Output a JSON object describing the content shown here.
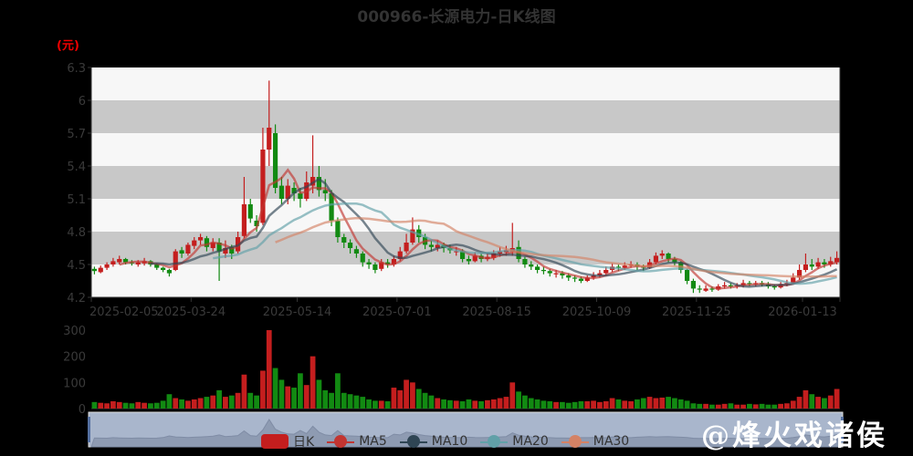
{
  "chart_data": {
    "type": "candlestick",
    "title": "000966-长源电力-日K线图",
    "y_unit_label": "(元)",
    "ylim": [
      4.2,
      6.3
    ],
    "y_ticks": [
      "4.2",
      "4.5",
      "4.8",
      "5.1",
      "5.4",
      "5.7",
      "6",
      "6.3"
    ],
    "x_ticks": [
      {
        "label": "2025-02-05",
        "index": 0
      },
      {
        "label": "2025-03-24",
        "index": 16
      },
      {
        "label": "2025-05-14",
        "index": 33
      },
      {
        "label": "2025-07-01",
        "index": 49
      },
      {
        "label": "2025-08-15",
        "index": 65
      },
      {
        "label": "2025-10-09",
        "index": 81
      },
      {
        "label": "2025-11-25",
        "index": 97
      },
      {
        "label": "2026-01-13",
        "index": 114
      }
    ],
    "ohlc_fields": [
      "open",
      "close",
      "low",
      "high"
    ],
    "ohlc": [
      [
        4.46,
        4.44,
        4.41,
        4.48
      ],
      [
        4.43,
        4.47,
        4.42,
        4.49
      ],
      [
        4.47,
        4.5,
        4.45,
        4.52
      ],
      [
        4.5,
        4.53,
        4.48,
        4.56
      ],
      [
        4.52,
        4.55,
        4.5,
        4.58
      ],
      [
        4.55,
        4.52,
        4.5,
        4.56
      ],
      [
        4.52,
        4.51,
        4.49,
        4.54
      ],
      [
        4.5,
        4.52,
        4.48,
        4.54
      ],
      [
        4.51,
        4.53,
        4.49,
        4.56
      ],
      [
        4.53,
        4.5,
        4.48,
        4.54
      ],
      [
        4.5,
        4.47,
        4.45,
        4.51
      ],
      [
        4.47,
        4.45,
        4.43,
        4.48
      ],
      [
        4.45,
        4.42,
        4.39,
        4.46
      ],
      [
        4.45,
        4.62,
        4.44,
        4.64
      ],
      [
        4.63,
        4.6,
        4.56,
        4.66
      ],
      [
        4.6,
        4.68,
        4.58,
        4.7
      ],
      [
        4.67,
        4.72,
        4.64,
        4.75
      ],
      [
        4.72,
        4.75,
        4.68,
        4.78
      ],
      [
        4.74,
        4.66,
        4.62,
        4.76
      ],
      [
        4.65,
        4.7,
        4.62,
        4.74
      ],
      [
        4.7,
        4.62,
        4.35,
        4.74
      ],
      [
        4.6,
        4.65,
        4.56,
        4.72
      ],
      [
        4.66,
        4.6,
        4.55,
        4.68
      ],
      [
        4.62,
        4.75,
        4.6,
        4.8
      ],
      [
        4.76,
        5.05,
        4.74,
        5.3
      ],
      [
        5.05,
        4.92,
        4.88,
        5.1
      ],
      [
        4.9,
        4.85,
        4.8,
        4.95
      ],
      [
        4.88,
        5.55,
        4.86,
        5.75
      ],
      [
        5.55,
        5.75,
        5.4,
        6.18
      ],
      [
        5.7,
        5.2,
        5.15,
        5.78
      ],
      [
        5.22,
        5.1,
        5.05,
        5.3
      ],
      [
        5.1,
        5.22,
        5.05,
        5.28
      ],
      [
        5.2,
        5.15,
        5.08,
        5.25
      ],
      [
        5.15,
        5.1,
        5.02,
        5.2
      ],
      [
        5.1,
        5.25,
        5.08,
        5.35
      ],
      [
        5.22,
        5.3,
        5.15,
        5.68
      ],
      [
        5.3,
        5.18,
        5.12,
        5.4
      ],
      [
        5.18,
        5.15,
        5.08,
        5.28
      ],
      [
        5.15,
        4.9,
        4.85,
        5.18
      ],
      [
        4.9,
        4.75,
        4.7,
        4.93
      ],
      [
        4.75,
        4.7,
        4.65,
        4.78
      ],
      [
        4.7,
        4.65,
        4.6,
        4.73
      ],
      [
        4.64,
        4.6,
        4.56,
        4.67
      ],
      [
        4.6,
        4.52,
        4.48,
        4.62
      ],
      [
        4.52,
        4.5,
        4.46,
        4.55
      ],
      [
        4.5,
        4.45,
        4.42,
        4.52
      ],
      [
        4.46,
        4.52,
        4.44,
        4.55
      ],
      [
        4.52,
        4.5,
        4.47,
        4.55
      ],
      [
        4.5,
        4.55,
        4.48,
        4.58
      ],
      [
        4.55,
        4.62,
        4.53,
        4.66
      ],
      [
        4.62,
        4.7,
        4.6,
        4.78
      ],
      [
        4.7,
        4.82,
        4.68,
        4.93
      ],
      [
        4.82,
        4.75,
        4.7,
        4.86
      ],
      [
        4.75,
        4.68,
        4.64,
        4.78
      ],
      [
        4.68,
        4.66,
        4.62,
        4.72
      ],
      [
        4.65,
        4.68,
        4.62,
        4.72
      ],
      [
        4.68,
        4.65,
        4.61,
        4.7
      ],
      [
        4.65,
        4.63,
        4.6,
        4.68
      ],
      [
        4.62,
        4.62,
        4.58,
        4.66
      ],
      [
        4.62,
        4.55,
        4.52,
        4.64
      ],
      [
        4.55,
        4.53,
        4.5,
        4.58
      ],
      [
        4.53,
        4.58,
        4.52,
        4.61
      ],
      [
        4.58,
        4.55,
        4.52,
        4.6
      ],
      [
        4.55,
        4.57,
        4.53,
        4.6
      ],
      [
        4.56,
        4.6,
        4.54,
        4.63
      ],
      [
        4.6,
        4.62,
        4.57,
        4.66
      ],
      [
        4.61,
        4.63,
        4.58,
        4.67
      ],
      [
        4.62,
        4.65,
        4.58,
        4.88
      ],
      [
        4.66,
        4.55,
        4.52,
        4.72
      ],
      [
        4.55,
        4.5,
        4.47,
        4.57
      ],
      [
        4.5,
        4.48,
        4.45,
        4.53
      ],
      [
        4.48,
        4.45,
        4.42,
        4.5
      ],
      [
        4.45,
        4.44,
        4.41,
        4.48
      ],
      [
        4.44,
        4.42,
        4.39,
        4.46
      ],
      [
        4.41,
        4.42,
        4.38,
        4.45
      ],
      [
        4.42,
        4.4,
        4.37,
        4.44
      ],
      [
        4.4,
        4.38,
        4.35,
        4.42
      ],
      [
        4.38,
        4.37,
        4.34,
        4.4
      ],
      [
        4.37,
        4.35,
        4.33,
        4.39
      ],
      [
        4.35,
        4.38,
        4.34,
        4.4
      ],
      [
        4.38,
        4.4,
        4.36,
        4.43
      ],
      [
        4.4,
        4.42,
        4.38,
        4.45
      ],
      [
        4.42,
        4.45,
        4.4,
        4.48
      ],
      [
        4.45,
        4.48,
        4.43,
        4.51
      ],
      [
        4.48,
        4.47,
        4.44,
        4.5
      ],
      [
        4.47,
        4.49,
        4.45,
        4.52
      ],
      [
        4.49,
        4.5,
        4.47,
        4.53
      ],
      [
        4.5,
        4.48,
        4.45,
        4.52
      ],
      [
        4.48,
        4.47,
        4.44,
        4.5
      ],
      [
        4.47,
        4.52,
        4.46,
        4.55
      ],
      [
        4.52,
        4.58,
        4.5,
        4.61
      ],
      [
        4.58,
        4.6,
        4.55,
        4.63
      ],
      [
        4.6,
        4.55,
        4.52,
        4.61
      ],
      [
        4.55,
        4.52,
        4.49,
        4.57
      ],
      [
        4.52,
        4.45,
        4.42,
        4.53
      ],
      [
        4.45,
        4.35,
        4.32,
        4.46
      ],
      [
        4.35,
        4.28,
        4.24,
        4.37
      ],
      [
        4.28,
        4.27,
        4.24,
        4.31
      ],
      [
        4.26,
        4.28,
        4.25,
        4.31
      ],
      [
        4.28,
        4.27,
        4.25,
        4.3
      ],
      [
        4.27,
        4.3,
        4.26,
        4.32
      ],
      [
        4.3,
        4.31,
        4.28,
        4.34
      ],
      [
        4.31,
        4.3,
        4.28,
        4.33
      ],
      [
        4.3,
        4.31,
        4.28,
        4.33
      ],
      [
        4.31,
        4.33,
        4.29,
        4.36
      ],
      [
        4.33,
        4.32,
        4.3,
        4.35
      ],
      [
        4.32,
        4.33,
        4.3,
        4.35
      ],
      [
        4.33,
        4.32,
        4.3,
        4.35
      ],
      [
        4.32,
        4.3,
        4.28,
        4.34
      ],
      [
        4.3,
        4.29,
        4.27,
        4.32
      ],
      [
        4.29,
        4.32,
        4.28,
        4.34
      ],
      [
        4.32,
        4.33,
        4.3,
        4.36
      ],
      [
        4.33,
        4.38,
        4.32,
        4.42
      ],
      [
        4.38,
        4.45,
        4.36,
        4.5
      ],
      [
        4.45,
        4.5,
        4.43,
        4.6
      ],
      [
        4.5,
        4.48,
        4.45,
        4.55
      ],
      [
        4.48,
        4.52,
        4.46,
        4.56
      ],
      [
        4.52,
        4.5,
        4.47,
        4.55
      ],
      [
        4.5,
        4.53,
        4.48,
        4.57
      ],
      [
        4.52,
        4.56,
        4.5,
        4.62
      ]
    ],
    "volume": [
      25,
      22,
      20,
      28,
      25,
      22,
      20,
      25,
      22,
      20,
      22,
      30,
      55,
      40,
      35,
      30,
      35,
      40,
      45,
      50,
      70,
      45,
      50,
      60,
      130,
      60,
      50,
      145,
      300,
      155,
      110,
      85,
      80,
      135,
      90,
      200,
      110,
      70,
      60,
      135,
      60,
      55,
      50,
      45,
      35,
      30,
      30,
      28,
      80,
      70,
      110,
      100,
      75,
      60,
      50,
      40,
      35,
      32,
      30,
      28,
      35,
      30,
      28,
      32,
      35,
      40,
      45,
      100,
      65,
      50,
      40,
      35,
      30,
      28,
      25,
      25,
      22,
      25,
      28,
      28,
      30,
      25,
      28,
      40,
      35,
      30,
      28,
      35,
      40,
      45,
      40,
      42,
      45,
      40,
      35,
      30,
      20,
      18,
      18,
      15,
      15,
      18,
      20,
      15,
      15,
      18,
      16,
      18,
      15,
      15,
      18,
      20,
      30,
      45,
      70,
      55,
      45,
      40,
      50,
      75
    ],
    "volume_ylim": [
      0,
      300
    ],
    "volume_ticks": [
      "0",
      "100",
      "200",
      "300"
    ],
    "legend": [
      "日K",
      "MA5",
      "MA10",
      "MA20",
      "MA30"
    ],
    "ma_periods": [
      5,
      10,
      20,
      30
    ],
    "colors": {
      "up": "#c41e1e",
      "down": "#128a12",
      "MA5": "#c23531",
      "MA10": "#2f4554",
      "MA20": "#61a0a8",
      "MA30": "#d48265",
      "band": "#c8c8c8",
      "plot_bg": "#f7f7f7",
      "zoom_bg": "#a9b6cc"
    },
    "legend_position": "bottom",
    "grid": "horizontal bands"
  },
  "watermark": "@烽火戏诸侯"
}
